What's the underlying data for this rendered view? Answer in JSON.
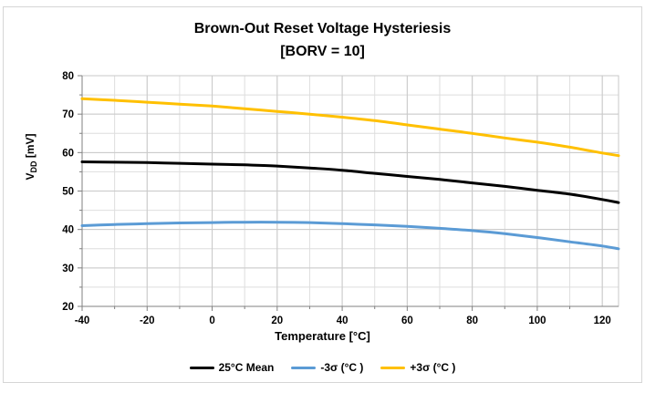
{
  "window": {
    "background": "#ffffff",
    "border_color": "#d6d6d6"
  },
  "title": {
    "line1": "Brown-Out Reset Voltage Hysteriesis",
    "line2": "[BORV = 10]"
  },
  "chart_data": {
    "type": "line",
    "title": "Brown-Out Reset Voltage Hysteriesis",
    "subtitle": "[BORV = 10]",
    "xlabel": "Temperature [°C]",
    "ylabel": {
      "main": "V",
      "sub": "DD",
      "rest": " [mV]"
    },
    "xlim": [
      -40,
      125
    ],
    "ylim": [
      20,
      80
    ],
    "x_major_ticks": [
      -40,
      -20,
      0,
      20,
      40,
      60,
      80,
      100,
      120
    ],
    "x_minor_step": 10,
    "y_major_ticks": [
      20,
      30,
      40,
      50,
      60,
      70,
      80
    ],
    "y_minor_step": 5,
    "grid": "on",
    "legend_position": "bottom",
    "x": [
      -40,
      -30,
      -20,
      -10,
      0,
      10,
      20,
      30,
      40,
      50,
      60,
      70,
      80,
      90,
      100,
      110,
      120,
      125
    ],
    "series": [
      {
        "name": "25°C Mean",
        "color": "#000000",
        "values": [
          57.6,
          57.5,
          57.4,
          57.2,
          57.0,
          56.8,
          56.5,
          56.0,
          55.4,
          54.6,
          53.8,
          53.0,
          52.1,
          51.2,
          50.2,
          49.2,
          47.8,
          47.0
        ]
      },
      {
        "name": "-3σ (°C )",
        "color": "#5B9BD5",
        "values": [
          41.0,
          41.3,
          41.5,
          41.7,
          41.8,
          41.9,
          41.9,
          41.8,
          41.5,
          41.2,
          40.8,
          40.3,
          39.7,
          38.9,
          37.9,
          36.8,
          35.7,
          35.0
        ]
      },
      {
        "name": "+3σ (°C )",
        "color": "#FFC000",
        "values": [
          74.0,
          73.6,
          73.1,
          72.6,
          72.1,
          71.4,
          70.7,
          70.0,
          69.2,
          68.3,
          67.2,
          66.1,
          65.0,
          63.8,
          62.7,
          61.4,
          59.9,
          59.2
        ]
      }
    ],
    "colors": {
      "minor_grid": "#dedede",
      "major_grid": "#c9c9c9",
      "axis": "#808080",
      "tick_label": "#000000"
    }
  }
}
